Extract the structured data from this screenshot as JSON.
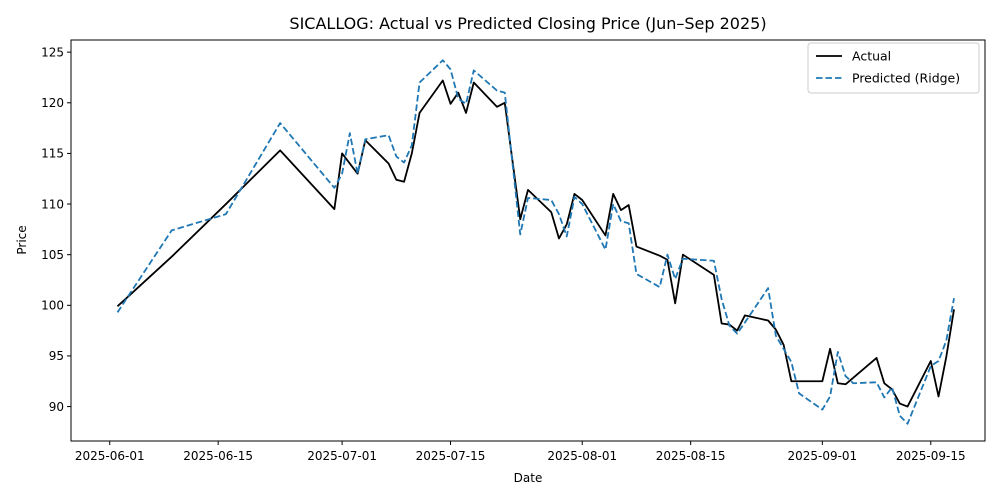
{
  "chart_data": {
    "type": "line",
    "title": "SICALLOG: Actual vs Predicted Closing Price (Jun–Sep 2025)",
    "xlabel": "Date",
    "ylabel": "Price",
    "xlim": [
      "2025-05-27",
      "2025-09-22"
    ],
    "ylim": [
      86.6,
      126.2
    ],
    "x_ticks": [
      "2025-06-01",
      "2025-06-15",
      "2025-07-01",
      "2025-07-15",
      "2025-08-01",
      "2025-08-15",
      "2025-09-01",
      "2025-09-15"
    ],
    "y_ticks": [
      90,
      95,
      100,
      105,
      110,
      115,
      120,
      125
    ],
    "grid": false,
    "legend_position": "top-right",
    "series": [
      {
        "name": "Actual",
        "color": "#000000",
        "style": "solid",
        "points": [
          [
            "2025-06-02",
            99.9
          ],
          [
            "2025-06-09",
            104.8
          ],
          [
            "2025-06-16",
            110.0
          ],
          [
            "2025-06-23",
            115.3
          ],
          [
            "2025-06-30",
            109.5
          ],
          [
            "2025-07-01",
            115.0
          ],
          [
            "2025-07-02",
            114.0
          ],
          [
            "2025-07-03",
            113.0
          ],
          [
            "2025-07-04",
            116.3
          ],
          [
            "2025-07-07",
            114.0
          ],
          [
            "2025-07-08",
            112.4
          ],
          [
            "2025-07-09",
            112.2
          ],
          [
            "2025-07-10",
            115.0
          ],
          [
            "2025-07-11",
            119.0
          ],
          [
            "2025-07-14",
            122.2
          ],
          [
            "2025-07-15",
            119.9
          ],
          [
            "2025-07-16",
            121.0
          ],
          [
            "2025-07-17",
            119.0
          ],
          [
            "2025-07-18",
            122.0
          ],
          [
            "2025-07-21",
            119.6
          ],
          [
            "2025-07-22",
            120.0
          ],
          [
            "2025-07-24",
            108.5
          ],
          [
            "2025-07-25",
            111.4
          ],
          [
            "2025-07-28",
            109.2
          ],
          [
            "2025-07-29",
            106.6
          ],
          [
            "2025-07-30",
            108.0
          ],
          [
            "2025-07-31",
            111.0
          ],
          [
            "2025-08-01",
            110.4
          ],
          [
            "2025-08-04",
            106.9
          ],
          [
            "2025-08-05",
            111.0
          ],
          [
            "2025-08-06",
            109.4
          ],
          [
            "2025-08-07",
            109.9
          ],
          [
            "2025-08-08",
            105.8
          ],
          [
            "2025-08-11",
            104.9
          ],
          [
            "2025-08-12",
            104.5
          ],
          [
            "2025-08-13",
            100.2
          ],
          [
            "2025-08-14",
            105.0
          ],
          [
            "2025-08-18",
            103.0
          ],
          [
            "2025-08-19",
            98.2
          ],
          [
            "2025-08-20",
            98.1
          ],
          [
            "2025-08-21",
            97.5
          ],
          [
            "2025-08-22",
            99.0
          ],
          [
            "2025-08-25",
            98.5
          ],
          [
            "2025-08-26",
            97.6
          ],
          [
            "2025-08-27",
            96.1
          ],
          [
            "2025-08-28",
            92.5
          ],
          [
            "2025-09-01",
            92.5
          ],
          [
            "2025-09-02",
            95.7
          ],
          [
            "2025-09-03",
            92.3
          ],
          [
            "2025-09-04",
            92.2
          ],
          [
            "2025-09-08",
            94.8
          ],
          [
            "2025-09-09",
            92.3
          ],
          [
            "2025-09-10",
            91.7
          ],
          [
            "2025-09-11",
            90.3
          ],
          [
            "2025-09-12",
            90.0
          ],
          [
            "2025-09-15",
            94.5
          ],
          [
            "2025-09-16",
            91.0
          ],
          [
            "2025-09-17",
            94.9
          ],
          [
            "2025-09-18",
            99.6
          ]
        ]
      },
      {
        "name": "Predicted (Ridge)",
        "color": "#1f77b4",
        "style": "dashed",
        "points": [
          [
            "2025-06-02",
            99.3
          ],
          [
            "2025-06-09",
            107.4
          ],
          [
            "2025-06-16",
            109.0
          ],
          [
            "2025-06-23",
            118.0
          ],
          [
            "2025-06-30",
            111.6
          ],
          [
            "2025-07-01",
            113.0
          ],
          [
            "2025-07-02",
            117.0
          ],
          [
            "2025-07-03",
            113.0
          ],
          [
            "2025-07-04",
            116.4
          ],
          [
            "2025-07-07",
            116.8
          ],
          [
            "2025-07-08",
            114.7
          ],
          [
            "2025-07-09",
            114.1
          ],
          [
            "2025-07-10",
            115.8
          ],
          [
            "2025-07-11",
            122.0
          ],
          [
            "2025-07-14",
            124.2
          ],
          [
            "2025-07-15",
            123.3
          ],
          [
            "2025-07-16",
            120.4
          ],
          [
            "2025-07-17",
            119.9
          ],
          [
            "2025-07-18",
            123.2
          ],
          [
            "2025-07-21",
            121.2
          ],
          [
            "2025-07-22",
            121.0
          ],
          [
            "2025-07-24",
            107.0
          ],
          [
            "2025-07-25",
            110.6
          ],
          [
            "2025-07-28",
            110.4
          ],
          [
            "2025-07-29",
            109.0
          ],
          [
            "2025-07-30",
            106.8
          ],
          [
            "2025-07-31",
            110.7
          ],
          [
            "2025-08-01",
            110.0
          ],
          [
            "2025-08-04",
            105.5
          ],
          [
            "2025-08-05",
            110.0
          ],
          [
            "2025-08-06",
            108.3
          ],
          [
            "2025-08-07",
            108.1
          ],
          [
            "2025-08-08",
            103.1
          ],
          [
            "2025-08-11",
            101.8
          ],
          [
            "2025-08-12",
            105.0
          ],
          [
            "2025-08-13",
            102.6
          ],
          [
            "2025-08-14",
            104.6
          ],
          [
            "2025-08-18",
            104.4
          ],
          [
            "2025-08-19",
            100.6
          ],
          [
            "2025-08-20",
            98.0
          ],
          [
            "2025-08-21",
            97.2
          ],
          [
            "2025-08-22",
            98.3
          ],
          [
            "2025-08-25",
            101.7
          ],
          [
            "2025-08-26",
            97.0
          ],
          [
            "2025-08-27",
            95.7
          ],
          [
            "2025-08-28",
            94.4
          ],
          [
            "2025-08-29",
            91.3
          ],
          [
            "2025-09-01",
            89.7
          ],
          [
            "2025-09-02",
            91.0
          ],
          [
            "2025-09-03",
            95.4
          ],
          [
            "2025-09-04",
            93.0
          ],
          [
            "2025-09-05",
            92.3
          ],
          [
            "2025-09-08",
            92.4
          ],
          [
            "2025-09-09",
            90.9
          ],
          [
            "2025-09-10",
            91.9
          ],
          [
            "2025-09-11",
            89.1
          ],
          [
            "2025-09-12",
            88.3
          ],
          [
            "2025-09-15",
            94.0
          ],
          [
            "2025-09-16",
            94.5
          ],
          [
            "2025-09-17",
            96.5
          ],
          [
            "2025-09-18",
            100.7
          ]
        ]
      }
    ]
  }
}
